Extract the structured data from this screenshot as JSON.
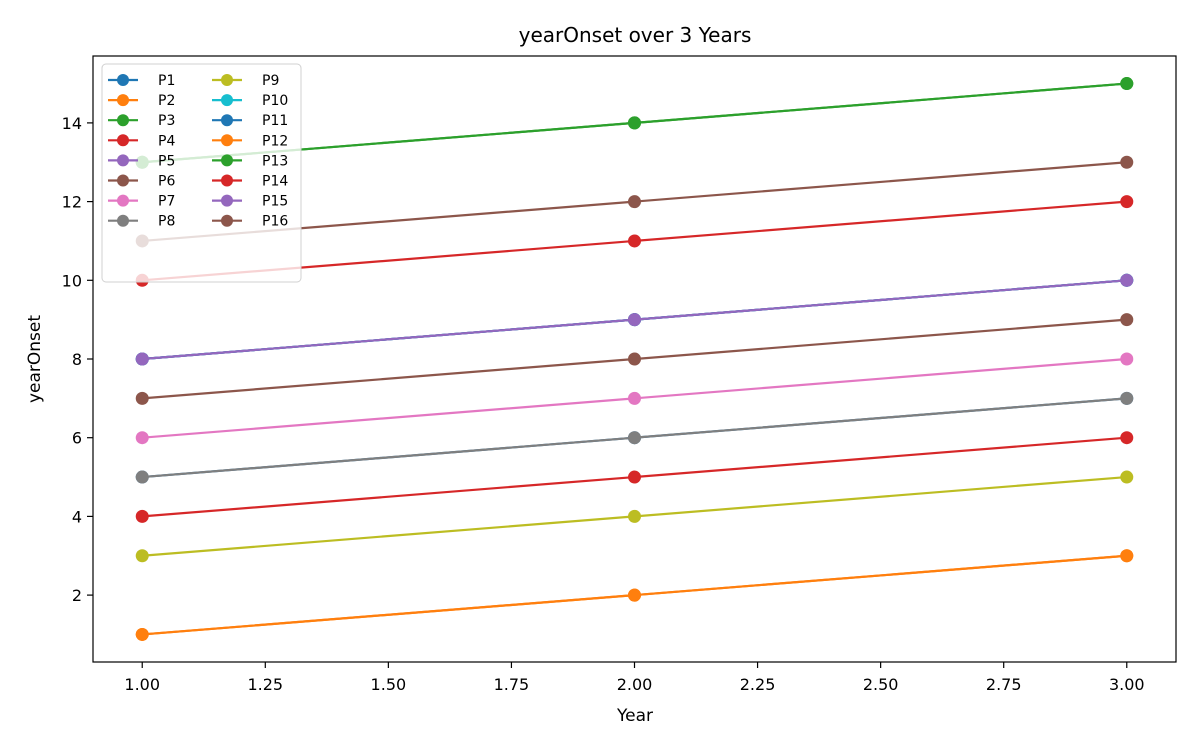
{
  "chart_data": {
    "type": "line",
    "title": "yearOnset over 3 Years",
    "xlabel": "Year",
    "ylabel": "yearOnset",
    "x": [
      1,
      2,
      3
    ],
    "xlim": [
      0.9,
      3.1
    ],
    "ylim": [
      0.3,
      15.7
    ],
    "xticks": [
      1.0,
      1.25,
      1.5,
      1.75,
      2.0,
      2.25,
      2.5,
      2.75,
      3.0
    ],
    "xtick_labels": [
      "1.00",
      "1.25",
      "1.50",
      "1.75",
      "2.00",
      "2.25",
      "2.50",
      "2.75",
      "3.00"
    ],
    "yticks": [
      2,
      4,
      6,
      8,
      10,
      12,
      14
    ],
    "ytick_labels": [
      "2",
      "4",
      "6",
      "8",
      "10",
      "12",
      "14"
    ],
    "grid": false,
    "legend_position": "top-left",
    "legend_columns": 2,
    "series": [
      {
        "name": "P1",
        "color": "#1f77b4",
        "values": [
          5,
          6,
          7
        ]
      },
      {
        "name": "P2",
        "color": "#ff7f0e",
        "values": [
          1,
          2,
          3
        ]
      },
      {
        "name": "P3",
        "color": "#2ca02c",
        "values": [
          13,
          14,
          15
        ]
      },
      {
        "name": "P4",
        "color": "#d62728",
        "values": [
          10,
          11,
          12
        ]
      },
      {
        "name": "P5",
        "color": "#9467bd",
        "values": [
          8,
          9,
          10
        ]
      },
      {
        "name": "P6",
        "color": "#8c564b",
        "values": [
          11,
          12,
          13
        ]
      },
      {
        "name": "P7",
        "color": "#e377c2",
        "values": [
          6,
          7,
          8
        ]
      },
      {
        "name": "P8",
        "color": "#7f7f7f",
        "values": [
          5,
          6,
          7
        ]
      },
      {
        "name": "P9",
        "color": "#bcbd22",
        "values": [
          3,
          4,
          5
        ]
      },
      {
        "name": "P10",
        "color": "#17becf",
        "values": [
          8,
          9,
          10
        ]
      },
      {
        "name": "P11",
        "color": "#1f77b4",
        "values": [
          8,
          9,
          10
        ]
      },
      {
        "name": "P12",
        "color": "#ff7f0e",
        "values": [
          1,
          2,
          3
        ]
      },
      {
        "name": "P13",
        "color": "#2ca02c",
        "values": [
          13,
          14,
          15
        ]
      },
      {
        "name": "P14",
        "color": "#d62728",
        "values": [
          4,
          5,
          6
        ]
      },
      {
        "name": "P15",
        "color": "#9467bd",
        "values": [
          8,
          9,
          10
        ]
      },
      {
        "name": "P16",
        "color": "#8c564b",
        "values": [
          7,
          8,
          9
        ]
      }
    ]
  }
}
